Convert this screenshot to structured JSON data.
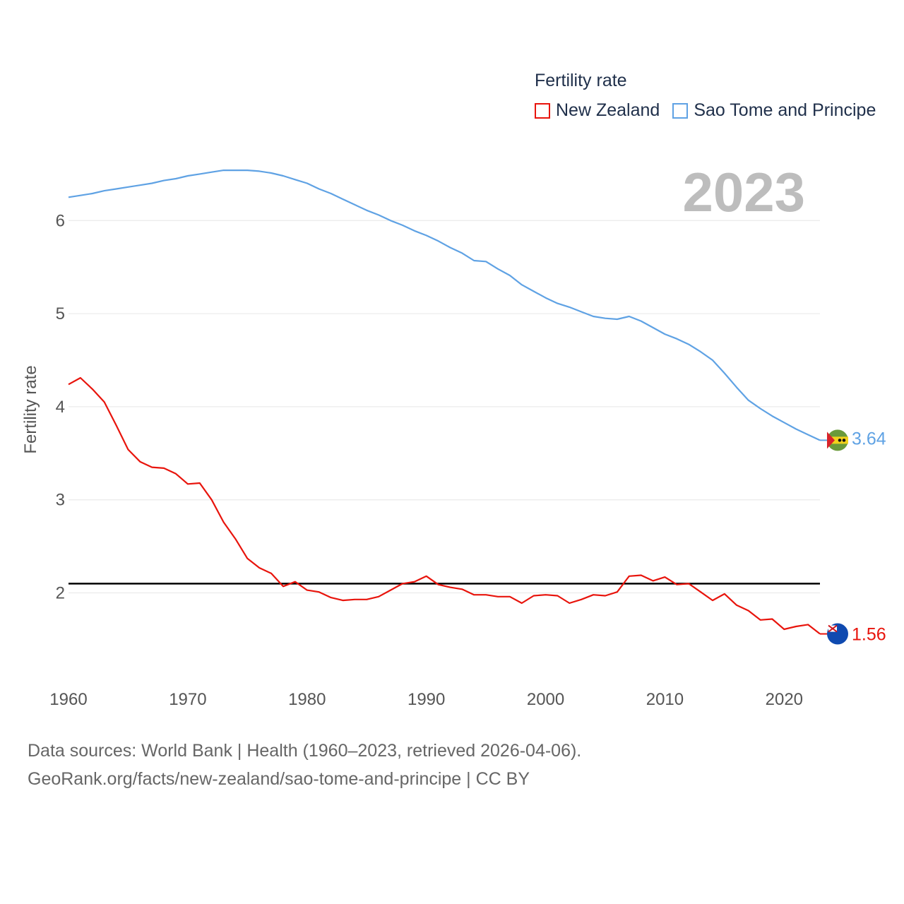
{
  "legend": {
    "title": "Fertility rate",
    "items": [
      {
        "name": "New Zealand",
        "color": "#e8140c"
      },
      {
        "name": "Sao Tome and Principe",
        "color": "#5fa2e4"
      }
    ]
  },
  "year_label": "2023",
  "source": {
    "line1": "Data sources: World Bank | Health (1960–2023, retrieved 2026-04-06).",
    "line2": "GeoRank.org/facts/new-zealand/sao-tome-and-principe | CC BY"
  },
  "chart_data": {
    "type": "line",
    "title": "",
    "xlabel": "",
    "ylabel": "Fertility rate",
    "xlim": [
      1960,
      2023
    ],
    "ylim": [
      1.2,
      6.7
    ],
    "x_ticks": [
      1960,
      1970,
      1980,
      1990,
      2000,
      2010,
      2020
    ],
    "y_ticks": [
      2,
      3,
      4,
      5,
      6
    ],
    "reference_line": 2.1,
    "grid": true,
    "x": [
      1960,
      1961,
      1962,
      1963,
      1964,
      1965,
      1966,
      1967,
      1968,
      1969,
      1970,
      1971,
      1972,
      1973,
      1974,
      1975,
      1976,
      1977,
      1978,
      1979,
      1980,
      1981,
      1982,
      1983,
      1984,
      1985,
      1986,
      1987,
      1988,
      1989,
      1990,
      1991,
      1992,
      1993,
      1994,
      1995,
      1996,
      1997,
      1998,
      1999,
      2000,
      2001,
      2002,
      2003,
      2004,
      2005,
      2006,
      2007,
      2008,
      2009,
      2010,
      2011,
      2012,
      2013,
      2014,
      2015,
      2016,
      2017,
      2018,
      2019,
      2020,
      2021,
      2022,
      2023
    ],
    "series": [
      {
        "name": "New Zealand",
        "color": "#e8140c",
        "end_label": "1.56",
        "values": [
          4.24,
          4.31,
          4.19,
          4.05,
          3.8,
          3.54,
          3.41,
          3.35,
          3.34,
          3.28,
          3.17,
          3.18,
          3.0,
          2.76,
          2.58,
          2.37,
          2.27,
          2.21,
          2.07,
          2.12,
          2.03,
          2.01,
          1.95,
          1.92,
          1.93,
          1.93,
          1.96,
          2.03,
          2.1,
          2.12,
          2.18,
          2.09,
          2.06,
          2.04,
          1.98,
          1.98,
          1.96,
          1.96,
          1.89,
          1.97,
          1.98,
          1.97,
          1.89,
          1.93,
          1.98,
          1.97,
          2.01,
          2.18,
          2.19,
          2.13,
          2.17,
          2.09,
          2.1,
          2.01,
          1.92,
          1.99,
          1.87,
          1.81,
          1.71,
          1.72,
          1.61,
          1.64,
          1.66,
          1.56
        ]
      },
      {
        "name": "Sao Tome and Principe",
        "color": "#5fa2e4",
        "end_label": "3.64",
        "values": [
          6.25,
          6.27,
          6.29,
          6.32,
          6.34,
          6.36,
          6.38,
          6.4,
          6.43,
          6.45,
          6.48,
          6.5,
          6.52,
          6.54,
          6.54,
          6.54,
          6.53,
          6.51,
          6.48,
          6.44,
          6.4,
          6.34,
          6.29,
          6.23,
          6.17,
          6.11,
          6.06,
          6.0,
          5.95,
          5.89,
          5.84,
          5.78,
          5.71,
          5.65,
          5.57,
          5.56,
          5.48,
          5.41,
          5.31,
          5.24,
          5.17,
          5.11,
          5.07,
          5.02,
          4.97,
          4.95,
          4.94,
          4.97,
          4.92,
          4.85,
          4.78,
          4.73,
          4.67,
          4.59,
          4.5,
          4.36,
          4.21,
          4.07,
          3.98,
          3.9,
          3.83,
          3.76,
          3.7,
          3.64
        ]
      }
    ]
  }
}
